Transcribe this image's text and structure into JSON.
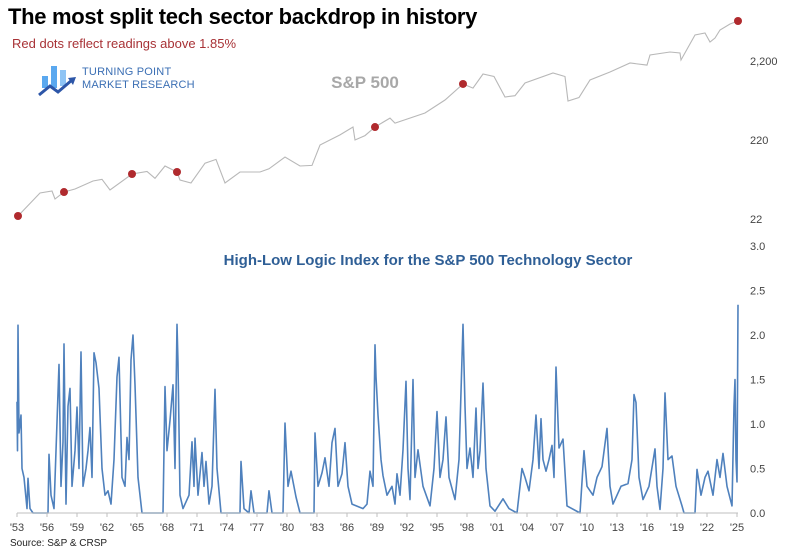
{
  "title": "The most split tech sector backdrop in history",
  "subtitle": "Red dots reflect readings above 1.85%",
  "logo": {
    "line1": "TURNING POINT",
    "line2": "MARKET RESEARCH"
  },
  "source": "Source: S&P & CRSP",
  "colors": {
    "sp500_line": "#b8b8b8",
    "red_dot": "#b02a2e",
    "index_line": "#4f81bd",
    "index_title": "#2f5f96",
    "subtitle": "#a83236"
  },
  "chart_data": [
    {
      "type": "line",
      "title": "S&P 500",
      "yscale": "log",
      "ylim": [
        18,
        8000
      ],
      "xlim": [
        1953,
        2025.2
      ],
      "y_ticks": [
        {
          "value": 22,
          "label": "22"
        },
        {
          "value": 220,
          "label": "220"
        },
        {
          "value": 2200,
          "label": "2,200"
        }
      ],
      "grid": false,
      "series": [
        {
          "x": [
            1953.1,
            1955.3,
            1956.5,
            1956.8,
            1957.7,
            1958.8,
            1960.6,
            1961.5,
            1962.3,
            1964.5,
            1966.0,
            1966.8,
            1967.8,
            1969.0,
            1969.3,
            1970.4,
            1971.8,
            1972.9,
            1973.8,
            1975.3,
            1977.3,
            1978.2,
            1979.8,
            1981.3,
            1982.5,
            1983.3,
            1985.3,
            1986.6,
            1986.8,
            1987.8,
            1988.8,
            1990.3,
            1990.8,
            1993.8,
            1995.8,
            1997.6,
            1998.6,
            1999.6,
            2000.7,
            2001.8,
            2002.8,
            2003.8,
            2006.6,
            2007.8,
            2008.1,
            2009.2,
            2010.3,
            2012.3,
            2014.3,
            2016.0,
            2016.3,
            2018.3,
            2019.3,
            2019.4,
            2020.8,
            2021.8,
            2022.3,
            2022.8,
            2023.3,
            2024.3,
            2025.1
          ],
          "y": [
            24,
            46.9,
            49.8,
            39.4,
            48.3,
            52.7,
            66.6,
            70,
            51.2,
            81.7,
            88,
            72,
            103,
            86.6,
            68.6,
            62.9,
            112,
            125,
            62.9,
            86.6,
            86.6,
            95,
            134,
            103,
            105,
            190,
            255,
            321,
            220,
            250,
            321,
            417,
            360,
            483,
            706,
            1126,
            1000,
            1505,
            1400,
            770,
            800,
            1160,
            1551,
            1400,
            686,
            760,
            1263,
            1597,
            2075,
            1950,
            2620,
            2860,
            2775,
            2265,
            4690,
            4970,
            3830,
            4300,
            5430,
            6470,
            7060
          ]
        }
      ],
      "red_dots": {
        "x": [
          1953.1,
          1957.7,
          1964.5,
          1969.0,
          1988.8,
          1997.6,
          2025.1
        ],
        "y": [
          24,
          48.3,
          81.7,
          86.6,
          321,
          1126,
          7060
        ]
      }
    },
    {
      "type": "line",
      "title": "High-Low Logic Index for the S&P 500 Technology Sector",
      "ylim": [
        0,
        3.0
      ],
      "y_ticks": [
        "0.0",
        "0.5",
        "1.0",
        "1.5",
        "2.0",
        "2.5",
        "3.0"
      ],
      "x_tick_labels": [
        "'53",
        "'56",
        "'59",
        "'62",
        "'65",
        "'68",
        "'71",
        "'74",
        "'77",
        "'80",
        "'83",
        "'86",
        "'89",
        "'92",
        "'95",
        "'98",
        "'01",
        "'04",
        "'07",
        "'10",
        "'13",
        "'16",
        "'19",
        "'22",
        "'25"
      ],
      "grid": false,
      "series": [
        {
          "x": [
            1953.0,
            1953.05,
            1953.1,
            1953.2,
            1953.4,
            1953.5,
            1953.7,
            1954.0,
            1954.1,
            1954.3,
            1954.6,
            1956.1,
            1956.2,
            1956.4,
            1956.7,
            1957.2,
            1957.4,
            1957.6,
            1957.7,
            1957.9,
            1958.1,
            1958.3,
            1958.5,
            1958.8,
            1959.0,
            1959.2,
            1959.4,
            1959.6,
            1959.9,
            1960.1,
            1960.3,
            1960.5,
            1960.7,
            1960.9,
            1961.2,
            1961.5,
            1961.8,
            1962.1,
            1962.4,
            1962.7,
            1963.0,
            1963.2,
            1963.5,
            1963.8,
            1964.0,
            1964.2,
            1964.4,
            1964.6,
            1964.8,
            1965.1,
            1965.5,
            1967.6,
            1967.8,
            1968.0,
            1968.3,
            1968.6,
            1968.8,
            1969.0,
            1969.1,
            1969.3,
            1969.6,
            1970.2,
            1970.5,
            1970.7,
            1970.8,
            1971.1,
            1971.5,
            1971.7,
            1971.9,
            1972.2,
            1972.5,
            1972.8,
            1973.0,
            1973.4,
            1975.3,
            1975.4,
            1975.7,
            1976.2,
            1976.4,
            1976.7,
            1978.0,
            1978.2,
            1978.5,
            1979.6,
            1979.8,
            1980.1,
            1980.4,
            1980.9,
            1981.3,
            1982.7,
            1982.8,
            1983.1,
            1983.5,
            1983.8,
            1984.2,
            1984.5,
            1984.8,
            1985.1,
            1985.5,
            1985.8,
            1986.1,
            1986.5,
            1987.6,
            1988.0,
            1988.3,
            1988.6,
            1988.8,
            1988.9,
            1989.1,
            1989.4,
            1989.6,
            1990.0,
            1990.5,
            1990.8,
            1991.0,
            1991.3,
            1991.6,
            1991.9,
            1992.1,
            1992.3,
            1992.6,
            1992.8,
            1993.1,
            1993.6,
            1994.3,
            1994.7,
            1995.0,
            1995.3,
            1995.6,
            1995.9,
            1996.2,
            1996.8,
            1997.2,
            1997.6,
            1997.8,
            1998.0,
            1998.3,
            1998.6,
            1998.9,
            1999.1,
            1999.3,
            1999.6,
            1999.9,
            2000.3,
            2000.8,
            2001.6,
            2002.2,
            2003.0,
            2003.5,
            2003.8,
            2004.2,
            2004.6,
            2004.9,
            2005.2,
            2005.4,
            2005.6,
            2005.9,
            2006.2,
            2006.5,
            2006.7,
            2006.9,
            2007.2,
            2007.6,
            2008.0,
            2009.3,
            2009.7,
            2010.0,
            2010.6,
            2011.0,
            2011.5,
            2012.0,
            2012.3,
            2012.6,
            2013.4,
            2014.1,
            2014.5,
            2014.7,
            2014.9,
            2015.2,
            2015.6,
            2016.2,
            2016.8,
            2017.0,
            2017.3,
            2017.6,
            2017.8,
            2018.1,
            2018.5,
            2018.9,
            2019.5,
            2019.7,
            2020.8,
            2021.0,
            2021.4,
            2021.8,
            2022.1,
            2022.6,
            2023.0,
            2023.3,
            2023.6,
            2024.0,
            2024.5,
            2024.7,
            2024.8,
            2024.9,
            2025.0,
            2025.1
          ],
          "y": [
            1.25,
            0.7,
            2.11,
            0.9,
            1.1,
            0.5,
            0.4,
            0.05,
            0.39,
            0.05,
            0,
            0,
            0.66,
            0.2,
            0.05,
            1.67,
            0.3,
            0.8,
            1.9,
            0.1,
            1.2,
            1.4,
            0.3,
            0.7,
            1.19,
            0.5,
            1.81,
            0.3,
            0.5,
            0.7,
            0.96,
            0.4,
            1.8,
            1.69,
            1.4,
            0.5,
            0.2,
            0.25,
            0.1,
            0.6,
            1.53,
            1.75,
            0.4,
            0.3,
            0.85,
            0.6,
            1.72,
            2.0,
            1.44,
            0.4,
            0,
            0,
            1.42,
            0.7,
            1.04,
            1.44,
            0.5,
            2.12,
            1.69,
            0.2,
            0.05,
            0.2,
            0.8,
            0.3,
            0.84,
            0.2,
            0.68,
            0.3,
            0.58,
            0.1,
            0.3,
            1.39,
            0.5,
            0,
            0,
            0.58,
            0.05,
            0,
            0.25,
            0,
            0,
            0.25,
            0,
            0,
            1.01,
            0.3,
            0.47,
            0.18,
            0,
            0,
            0.9,
            0.3,
            0.45,
            0.62,
            0.3,
            0.79,
            0.95,
            0.3,
            0.44,
            0.79,
            0.3,
            0.1,
            0.05,
            0.1,
            0.47,
            0.3,
            1.89,
            1.53,
            1.1,
            0.6,
            0.42,
            0.2,
            0.3,
            0.1,
            0.44,
            0.2,
            0.71,
            1.48,
            0.5,
            0.15,
            1.5,
            0.4,
            0.71,
            0.3,
            0.08,
            0.5,
            1.14,
            0.4,
            0.6,
            1.08,
            0.4,
            0.15,
            0.6,
            2.12,
            1.2,
            0.5,
            0.73,
            0.4,
            1.18,
            0.5,
            0.7,
            1.46,
            0.5,
            0.08,
            0.02,
            0.16,
            0.05,
            0,
            0.5,
            0.4,
            0.25,
            0.6,
            1.1,
            0.5,
            1.06,
            0.6,
            0.47,
            0.6,
            0.76,
            0.4,
            1.64,
            0.73,
            0.83,
            0.08,
            0,
            0.7,
            0.3,
            0.2,
            0.4,
            0.52,
            0.95,
            0.3,
            0.1,
            0.3,
            0.33,
            0.6,
            1.33,
            1.24,
            0.4,
            0.15,
            0.3,
            0.72,
            0.3,
            0.04,
            0.5,
            1.35,
            0.6,
            0.64,
            0.3,
            0.08,
            0,
            0,
            0.49,
            0.2,
            0.4,
            0.47,
            0.2,
            0.6,
            0.4,
            0.67,
            0.3,
            0.08,
            1.2,
            1.5,
            0.6,
            0.35,
            2.34
          ]
        }
      ]
    }
  ]
}
